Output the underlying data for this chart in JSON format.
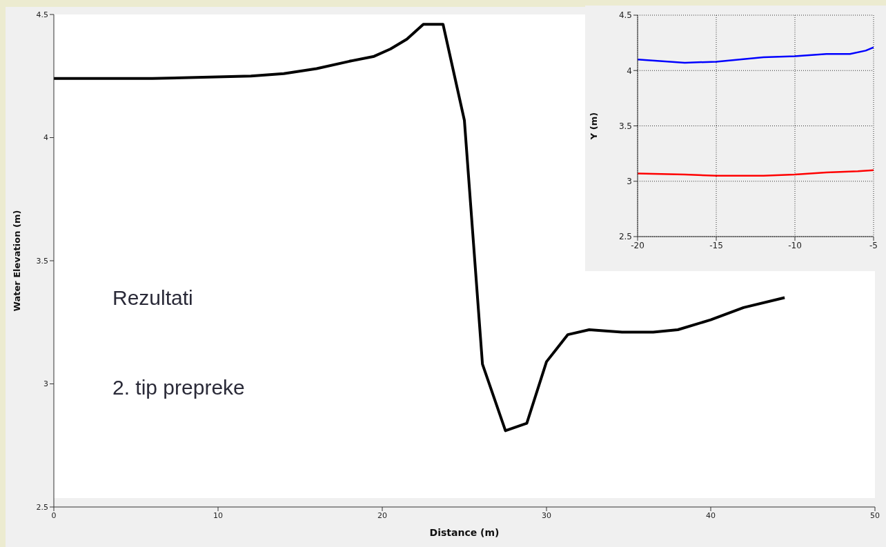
{
  "chart_data": [
    {
      "type": "line",
      "xlabel": "Distance (m)",
      "ylabel": "Water Elevation (m)",
      "xlim": [
        0,
        50
      ],
      "xticks": [
        0,
        10,
        20,
        30,
        40,
        50
      ],
      "ylim": [
        2.5,
        4.5
      ],
      "yticks": [
        2.5,
        3,
        3.5,
        4,
        4.5
      ],
      "grid": false,
      "marker": "none",
      "annotations": [
        "Rezultati",
        "2. tip prepreke"
      ],
      "series": [
        {
          "color": "#000000",
          "x": [
            0,
            6,
            12,
            14,
            16,
            18,
            19.5,
            20.5,
            21.5,
            22.5,
            23.7,
            25,
            26.1,
            27.5,
            28.8,
            30,
            31.3,
            32.6,
            34.6,
            36.5,
            38,
            40,
            42,
            44.5
          ],
          "values": [
            4.24,
            4.24,
            4.25,
            4.26,
            4.28,
            4.31,
            4.33,
            4.36,
            4.4,
            4.46,
            4.46,
            4.07,
            3.08,
            2.81,
            2.84,
            3.09,
            3.2,
            3.22,
            3.21,
            3.21,
            3.22,
            3.26,
            3.31,
            3.35
          ]
        }
      ]
    },
    {
      "type": "line",
      "ylabel": "Y (m)",
      "xlim": [
        -20,
        -5
      ],
      "xticks": [
        -20,
        -15,
        -10,
        -5
      ],
      "ylim": [
        2.5,
        4.5
      ],
      "yticks": [
        2.5,
        3,
        3.5,
        4,
        4.5
      ],
      "grid": true,
      "marker": "none",
      "series": [
        {
          "color": "#0000ff",
          "x": [
            -20,
            -17,
            -15,
            -12,
            -10,
            -8,
            -6.5,
            -5.5,
            -5
          ],
          "values": [
            4.1,
            4.07,
            4.08,
            4.12,
            4.13,
            4.15,
            4.15,
            4.18,
            4.21
          ]
        },
        {
          "color": "#ff0000",
          "x": [
            -20,
            -17,
            -15,
            -12,
            -10,
            -8,
            -6,
            -5
          ],
          "values": [
            3.07,
            3.06,
            3.05,
            3.05,
            3.06,
            3.08,
            3.09,
            3.1
          ]
        }
      ]
    }
  ]
}
